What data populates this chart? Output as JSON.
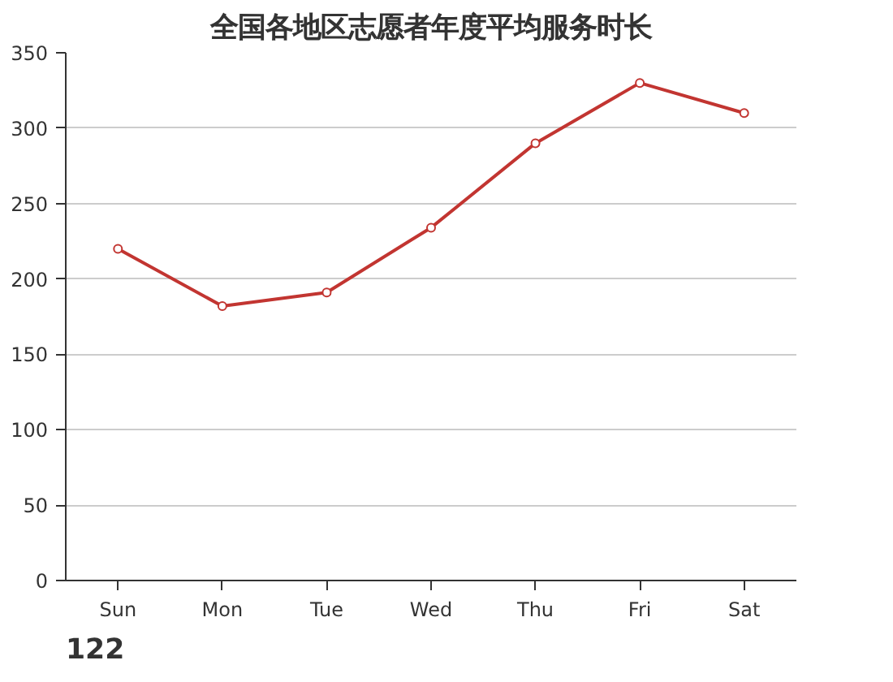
{
  "chart_data": {
    "type": "line",
    "title": "全国各地区志愿者年度平均服务时长",
    "categories": [
      "Sun",
      "Mon",
      "Tue",
      "Wed",
      "Thu",
      "Fri",
      "Sat"
    ],
    "series": [
      {
        "color": "#c23531",
        "values": [
          220,
          182,
          191,
          234,
          290,
          330,
          310
        ]
      }
    ],
    "ylim": [
      0,
      350
    ],
    "yticks": [
      0,
      50,
      100,
      150,
      200,
      250,
      300,
      350
    ],
    "grid": "y",
    "marker": "circle",
    "line_style": "solid",
    "annotations": [
      "122"
    ]
  }
}
